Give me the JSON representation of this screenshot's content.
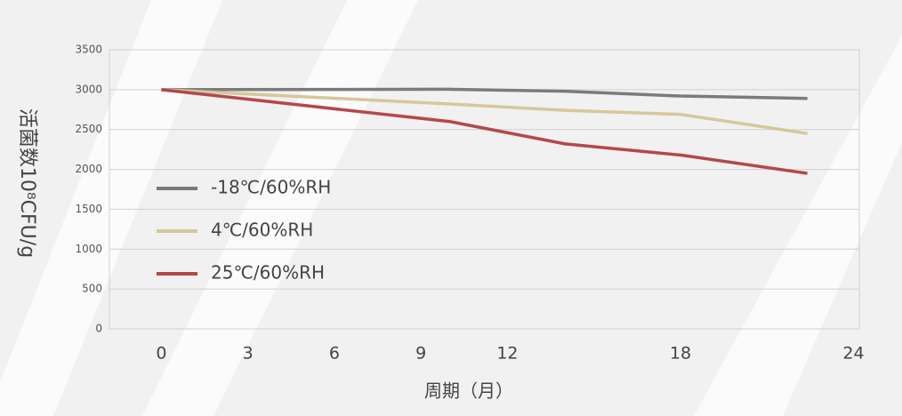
{
  "chart_data": {
    "type": "line",
    "x_label": "周期（月）",
    "y_label": "活菌数10⁸CFU/g",
    "x": [
      0,
      10,
      14,
      18,
      22.4
    ],
    "series": [
      {
        "name": "-18℃/60%RH",
        "color": "#7b7b7b",
        "values": [
          3000,
          3005,
          2980,
          2920,
          2890
        ]
      },
      {
        "name": "4℃/60%RH",
        "color": "#d6c89b",
        "values": [
          3000,
          2820,
          2740,
          2690,
          2450
        ]
      },
      {
        "name": "25℃/60%RH",
        "color": "#b5474a",
        "values": [
          3000,
          2600,
          2320,
          2180,
          1950
        ]
      }
    ],
    "xlim": [
      -1.8,
      24.2
    ],
    "xticks": [
      0,
      3,
      6,
      9,
      12,
      18,
      24
    ],
    "ylim": [
      0,
      3500
    ],
    "yticks": [
      0,
      500,
      1000,
      1500,
      2000,
      2500,
      3000,
      3500
    ],
    "grid": true,
    "legend": "left"
  }
}
